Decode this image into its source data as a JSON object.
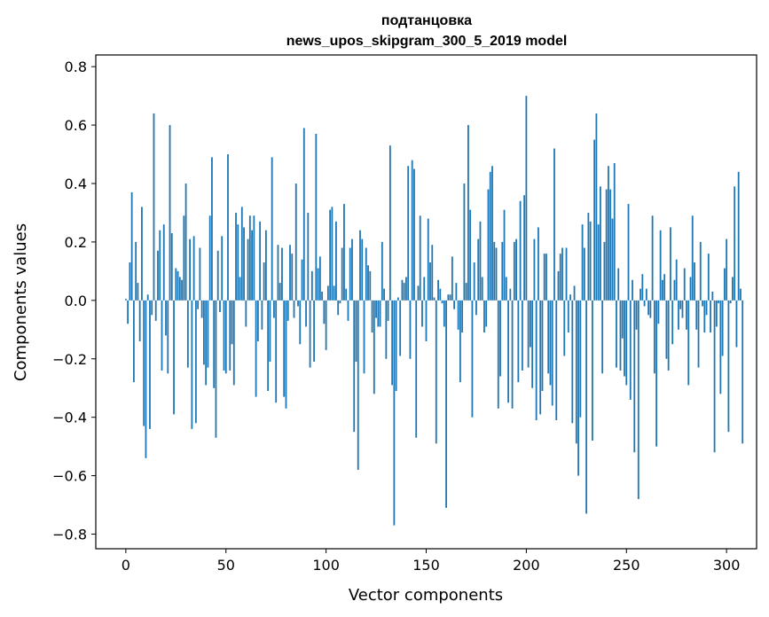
{
  "chart_data": {
    "type": "bar",
    "title_line1": "подтанцовка",
    "title_line2": "news_upos_skipgram_300_5_2019 model",
    "xlabel": "Vector components",
    "ylabel": "Components values",
    "xlim": [
      -15,
      315
    ],
    "ylim": [
      -0.85,
      0.84
    ],
    "x_ticks": [
      0,
      50,
      100,
      150,
      200,
      250,
      300
    ],
    "y_ticks": [
      0.8,
      0.6,
      0.4,
      0.2,
      0.0,
      -0.2,
      -0.4,
      -0.6,
      -0.8
    ],
    "y_tick_labels": [
      "0.8",
      "0.6",
      "0.4",
      "0.2",
      "0.0",
      "−0.2",
      "−0.4",
      "−0.6",
      "−0.8"
    ],
    "bar_color": "#1f77b4",
    "values": [
      0.005,
      -0.08,
      0.13,
      0.37,
      -0.28,
      0.2,
      0.06,
      -0.14,
      0.32,
      -0.43,
      -0.54,
      0.02,
      -0.44,
      -0.05,
      0.64,
      -0.07,
      0.17,
      0.24,
      -0.24,
      0.26,
      -0.12,
      -0.25,
      0.6,
      0.23,
      -0.39,
      0.11,
      0.1,
      0.08,
      0.07,
      0.29,
      0.4,
      -0.23,
      0.21,
      -0.44,
      0.22,
      -0.42,
      -0.03,
      0.18,
      -0.06,
      -0.22,
      -0.29,
      -0.23,
      0.29,
      0.49,
      -0.3,
      -0.47,
      0.17,
      -0.04,
      0.22,
      -0.24,
      -0.25,
      0.5,
      -0.24,
      -0.15,
      -0.29,
      0.3,
      0.26,
      0.08,
      0.32,
      0.25,
      -0.09,
      0.21,
      0.29,
      0.24,
      0.29,
      -0.33,
      -0.14,
      0.27,
      -0.1,
      0.13,
      0.24,
      -0.31,
      -0.21,
      0.49,
      -0.06,
      -0.35,
      0.19,
      0.06,
      0.18,
      -0.33,
      -0.37,
      -0.07,
      0.19,
      0.16,
      -0.06,
      0.4,
      -0.02,
      -0.15,
      0.14,
      0.59,
      -0.09,
      0.3,
      -0.23,
      0.1,
      -0.21,
      0.57,
      0.11,
      0.15,
      0.03,
      -0.08,
      -0.17,
      0.05,
      0.31,
      0.32,
      0.05,
      0.27,
      -0.05,
      -0.01,
      0.18,
      0.33,
      0.04,
      -0.07,
      0.18,
      0.21,
      -0.45,
      -0.21,
      -0.58,
      0.24,
      0.21,
      -0.25,
      0.18,
      0.12,
      0.1,
      -0.11,
      -0.32,
      -0.06,
      -0.09,
      -0.09,
      0.2,
      0.04,
      -0.2,
      -0.07,
      0.53,
      -0.29,
      -0.77,
      -0.31,
      0.01,
      -0.19,
      0.07,
      0.06,
      0.08,
      0.46,
      -0.2,
      0.48,
      0.45,
      -0.47,
      0.05,
      0.29,
      -0.09,
      0.08,
      -0.14,
      0.28,
      0.13,
      0.19,
      0.01,
      -0.49,
      0.07,
      0.04,
      -0.01,
      -0.09,
      -0.71,
      0.02,
      0.02,
      0.15,
      -0.03,
      0.06,
      -0.1,
      -0.28,
      -0.11,
      0.4,
      0.06,
      0.6,
      0.31,
      -0.4,
      0.13,
      -0.05,
      0.21,
      0.27,
      0.08,
      -0.11,
      -0.09,
      0.38,
      0.44,
      0.46,
      0.2,
      0.18,
      -0.37,
      -0.26,
      0.2,
      0.31,
      0.08,
      -0.35,
      0.04,
      -0.37,
      0.2,
      0.21,
      -0.28,
      0.34,
      -0.24,
      0.36,
      0.7,
      -0.23,
      -0.16,
      -0.3,
      0.21,
      -0.41,
      0.25,
      -0.39,
      -0.31,
      0.16,
      0.16,
      -0.25,
      -0.29,
      -0.36,
      0.52,
      -0.41,
      0.1,
      0.16,
      0.18,
      -0.19,
      0.18,
      -0.11,
      0.02,
      -0.42,
      0.05,
      -0.49,
      -0.6,
      -0.4,
      0.26,
      0.18,
      -0.73,
      0.3,
      0.27,
      -0.48,
      0.55,
      0.64,
      0.26,
      0.39,
      -0.25,
      0.2,
      0.38,
      0.46,
      0.38,
      0.28,
      0.47,
      -0.23,
      0.11,
      -0.24,
      -0.13,
      -0.26,
      -0.29,
      0.33,
      -0.34,
      0.07,
      -0.52,
      -0.1,
      -0.68,
      0.04,
      0.09,
      -0.02,
      0.04,
      -0.05,
      -0.06,
      0.29,
      -0.25,
      -0.5,
      -0.08,
      0.24,
      0.07,
      0.09,
      -0.2,
      -0.24,
      0.25,
      -0.15,
      0.07,
      0.14,
      -0.1,
      -0.03,
      -0.06,
      0.11,
      -0.1,
      -0.29,
      0.08,
      0.29,
      0.13,
      -0.1,
      -0.23,
      0.2,
      -0.02,
      -0.11,
      -0.05,
      0.16,
      -0.11,
      0.03,
      -0.52,
      -0.09,
      -0.01,
      -0.32,
      -0.19,
      0.11,
      0.21,
      -0.45,
      -0.01,
      0.08,
      0.39,
      -0.16,
      0.44,
      0.04,
      -0.49
    ]
  }
}
